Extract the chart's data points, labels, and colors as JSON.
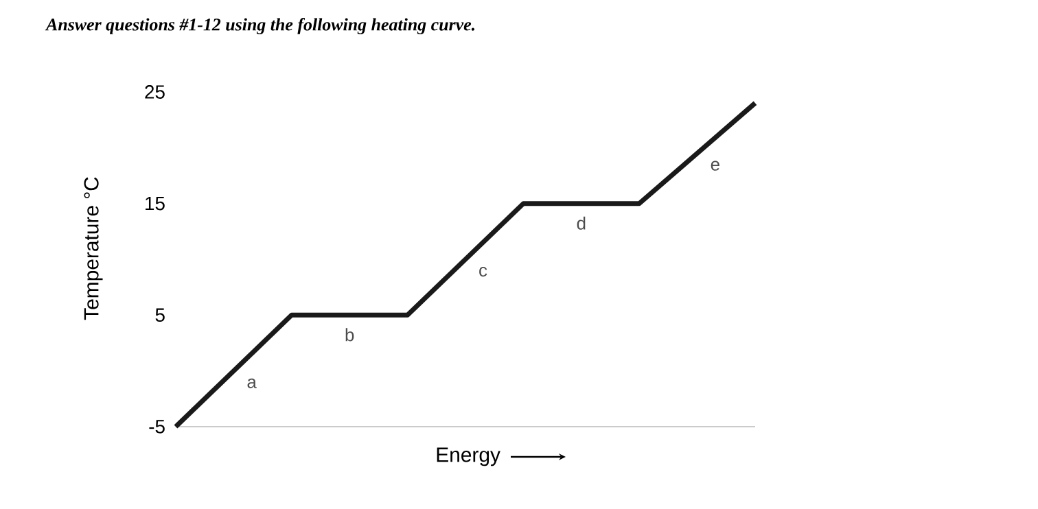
{
  "chart_data": {
    "type": "line",
    "title": "Answer questions #1-12 using the following heating curve.",
    "xlabel": "Energy",
    "ylabel": "Temperature °C",
    "categories": [
      null,
      null,
      null,
      null,
      null,
      null
    ],
    "series": [
      {
        "color": "#1a1a1a",
        "values": [
          -5,
          5,
          5,
          15,
          15,
          24
        ]
      }
    ],
    "ylim": [
      -5,
      25
    ],
    "yticks": [
      -5,
      5,
      15,
      25
    ],
    "marker": "none",
    "line_style": "solid",
    "tick_labels": "y",
    "annotations": [
      "a",
      "b",
      "c",
      "d",
      "e"
    ]
  }
}
